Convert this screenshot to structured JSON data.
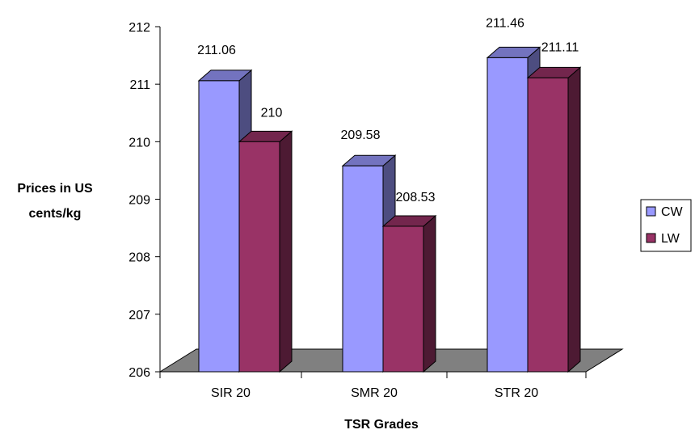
{
  "chart_data": {
    "type": "bar",
    "style": "3d-clustered-column",
    "categories": [
      "SIR 20",
      "SMR 20",
      "STR 20"
    ],
    "series": [
      {
        "name": "CW",
        "values": [
          211.06,
          209.58,
          211.46
        ],
        "color": "#9999ff"
      },
      {
        "name": "LW",
        "values": [
          210,
          208.53,
          211.11
        ],
        "color": "#993366"
      }
    ],
    "title": "",
    "xlabel": "TSR Grades",
    "ylabel": "Prices in US cents/kg",
    "ylim": [
      206,
      212
    ],
    "yticks": [
      206,
      207,
      208,
      209,
      210,
      211,
      212
    ],
    "grid": false,
    "legend_position": "right",
    "floor_color": "#808080"
  }
}
